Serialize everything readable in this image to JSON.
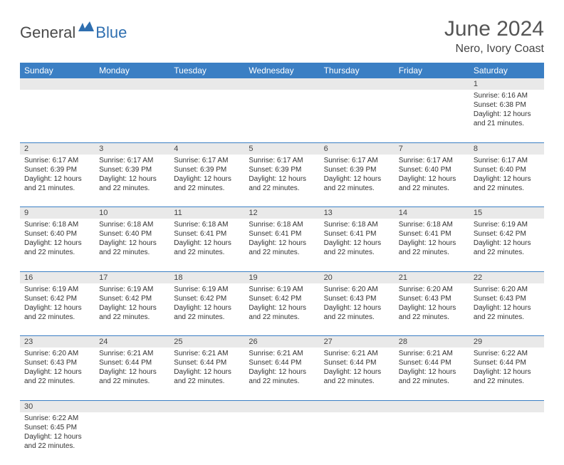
{
  "logo": {
    "general": "General",
    "blue": "Blue"
  },
  "title": "June 2024",
  "location": "Nero, Ivory Coast",
  "colors": {
    "header_bg": "#3b7fc4",
    "header_fg": "#ffffff",
    "daynum_bg": "#e9e9e9",
    "border": "#3b7fc4",
    "logo_icon": "#2f6fb0"
  },
  "weekdays": [
    "Sunday",
    "Monday",
    "Tuesday",
    "Wednesday",
    "Thursday",
    "Friday",
    "Saturday"
  ],
  "weeks": [
    {
      "nums": [
        "",
        "",
        "",
        "",
        "",
        "",
        "1"
      ],
      "cells": [
        null,
        null,
        null,
        null,
        null,
        null,
        {
          "sunrise": "Sunrise: 6:16 AM",
          "sunset": "Sunset: 6:38 PM",
          "day1": "Daylight: 12 hours",
          "day2": "and 21 minutes."
        }
      ]
    },
    {
      "nums": [
        "2",
        "3",
        "4",
        "5",
        "6",
        "7",
        "8"
      ],
      "cells": [
        {
          "sunrise": "Sunrise: 6:17 AM",
          "sunset": "Sunset: 6:39 PM",
          "day1": "Daylight: 12 hours",
          "day2": "and 21 minutes."
        },
        {
          "sunrise": "Sunrise: 6:17 AM",
          "sunset": "Sunset: 6:39 PM",
          "day1": "Daylight: 12 hours",
          "day2": "and 22 minutes."
        },
        {
          "sunrise": "Sunrise: 6:17 AM",
          "sunset": "Sunset: 6:39 PM",
          "day1": "Daylight: 12 hours",
          "day2": "and 22 minutes."
        },
        {
          "sunrise": "Sunrise: 6:17 AM",
          "sunset": "Sunset: 6:39 PM",
          "day1": "Daylight: 12 hours",
          "day2": "and 22 minutes."
        },
        {
          "sunrise": "Sunrise: 6:17 AM",
          "sunset": "Sunset: 6:39 PM",
          "day1": "Daylight: 12 hours",
          "day2": "and 22 minutes."
        },
        {
          "sunrise": "Sunrise: 6:17 AM",
          "sunset": "Sunset: 6:40 PM",
          "day1": "Daylight: 12 hours",
          "day2": "and 22 minutes."
        },
        {
          "sunrise": "Sunrise: 6:17 AM",
          "sunset": "Sunset: 6:40 PM",
          "day1": "Daylight: 12 hours",
          "day2": "and 22 minutes."
        }
      ]
    },
    {
      "nums": [
        "9",
        "10",
        "11",
        "12",
        "13",
        "14",
        "15"
      ],
      "cells": [
        {
          "sunrise": "Sunrise: 6:18 AM",
          "sunset": "Sunset: 6:40 PM",
          "day1": "Daylight: 12 hours",
          "day2": "and 22 minutes."
        },
        {
          "sunrise": "Sunrise: 6:18 AM",
          "sunset": "Sunset: 6:40 PM",
          "day1": "Daylight: 12 hours",
          "day2": "and 22 minutes."
        },
        {
          "sunrise": "Sunrise: 6:18 AM",
          "sunset": "Sunset: 6:41 PM",
          "day1": "Daylight: 12 hours",
          "day2": "and 22 minutes."
        },
        {
          "sunrise": "Sunrise: 6:18 AM",
          "sunset": "Sunset: 6:41 PM",
          "day1": "Daylight: 12 hours",
          "day2": "and 22 minutes."
        },
        {
          "sunrise": "Sunrise: 6:18 AM",
          "sunset": "Sunset: 6:41 PM",
          "day1": "Daylight: 12 hours",
          "day2": "and 22 minutes."
        },
        {
          "sunrise": "Sunrise: 6:18 AM",
          "sunset": "Sunset: 6:41 PM",
          "day1": "Daylight: 12 hours",
          "day2": "and 22 minutes."
        },
        {
          "sunrise": "Sunrise: 6:19 AM",
          "sunset": "Sunset: 6:42 PM",
          "day1": "Daylight: 12 hours",
          "day2": "and 22 minutes."
        }
      ]
    },
    {
      "nums": [
        "16",
        "17",
        "18",
        "19",
        "20",
        "21",
        "22"
      ],
      "cells": [
        {
          "sunrise": "Sunrise: 6:19 AM",
          "sunset": "Sunset: 6:42 PM",
          "day1": "Daylight: 12 hours",
          "day2": "and 22 minutes."
        },
        {
          "sunrise": "Sunrise: 6:19 AM",
          "sunset": "Sunset: 6:42 PM",
          "day1": "Daylight: 12 hours",
          "day2": "and 22 minutes."
        },
        {
          "sunrise": "Sunrise: 6:19 AM",
          "sunset": "Sunset: 6:42 PM",
          "day1": "Daylight: 12 hours",
          "day2": "and 22 minutes."
        },
        {
          "sunrise": "Sunrise: 6:19 AM",
          "sunset": "Sunset: 6:42 PM",
          "day1": "Daylight: 12 hours",
          "day2": "and 22 minutes."
        },
        {
          "sunrise": "Sunrise: 6:20 AM",
          "sunset": "Sunset: 6:43 PM",
          "day1": "Daylight: 12 hours",
          "day2": "and 22 minutes."
        },
        {
          "sunrise": "Sunrise: 6:20 AM",
          "sunset": "Sunset: 6:43 PM",
          "day1": "Daylight: 12 hours",
          "day2": "and 22 minutes."
        },
        {
          "sunrise": "Sunrise: 6:20 AM",
          "sunset": "Sunset: 6:43 PM",
          "day1": "Daylight: 12 hours",
          "day2": "and 22 minutes."
        }
      ]
    },
    {
      "nums": [
        "23",
        "24",
        "25",
        "26",
        "27",
        "28",
        "29"
      ],
      "cells": [
        {
          "sunrise": "Sunrise: 6:20 AM",
          "sunset": "Sunset: 6:43 PM",
          "day1": "Daylight: 12 hours",
          "day2": "and 22 minutes."
        },
        {
          "sunrise": "Sunrise: 6:21 AM",
          "sunset": "Sunset: 6:44 PM",
          "day1": "Daylight: 12 hours",
          "day2": "and 22 minutes."
        },
        {
          "sunrise": "Sunrise: 6:21 AM",
          "sunset": "Sunset: 6:44 PM",
          "day1": "Daylight: 12 hours",
          "day2": "and 22 minutes."
        },
        {
          "sunrise": "Sunrise: 6:21 AM",
          "sunset": "Sunset: 6:44 PM",
          "day1": "Daylight: 12 hours",
          "day2": "and 22 minutes."
        },
        {
          "sunrise": "Sunrise: 6:21 AM",
          "sunset": "Sunset: 6:44 PM",
          "day1": "Daylight: 12 hours",
          "day2": "and 22 minutes."
        },
        {
          "sunrise": "Sunrise: 6:21 AM",
          "sunset": "Sunset: 6:44 PM",
          "day1": "Daylight: 12 hours",
          "day2": "and 22 minutes."
        },
        {
          "sunrise": "Sunrise: 6:22 AM",
          "sunset": "Sunset: 6:44 PM",
          "day1": "Daylight: 12 hours",
          "day2": "and 22 minutes."
        }
      ]
    },
    {
      "nums": [
        "30",
        "",
        "",
        "",
        "",
        "",
        ""
      ],
      "cells": [
        {
          "sunrise": "Sunrise: 6:22 AM",
          "sunset": "Sunset: 6:45 PM",
          "day1": "Daylight: 12 hours",
          "day2": "and 22 minutes."
        },
        null,
        null,
        null,
        null,
        null,
        null
      ]
    }
  ]
}
